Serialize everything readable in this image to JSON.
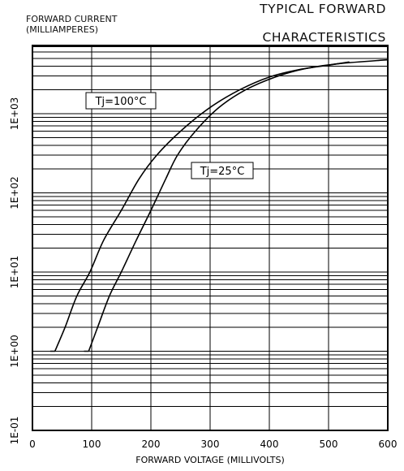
{
  "chart_data": {
    "type": "line",
    "title": "TYPICAL FORWARD CHARACTERISTICS",
    "title_lines": [
      "TYPICAL FORWARD",
      "CHARACTERISTICS"
    ],
    "ylabel_lines": [
      "FORWARD CURRENT",
      "(MILLIAMPERES)"
    ],
    "xlabel": "FORWARD  VOLTAGE (MILLIVOLTS)",
    "xlim": [
      0,
      600
    ],
    "ylim": [
      0.1,
      5000
    ],
    "yscale": "log",
    "grid": true,
    "x_ticks": [
      0,
      100,
      200,
      300,
      400,
      500,
      600
    ],
    "x_tick_labels": [
      "0",
      "100",
      "200",
      "300",
      "400",
      "500",
      "600"
    ],
    "y_ticks": [
      0.1,
      1,
      10,
      100,
      1000
    ],
    "y_tick_labels": [
      "1E-01",
      "1E+00",
      "1E+01",
      "1E+02",
      "1E+03"
    ],
    "series": [
      {
        "name": "Tj=100°C",
        "points": [
          [
            38,
            1
          ],
          [
            55,
            2
          ],
          [
            75,
            5
          ],
          [
            97,
            10
          ],
          [
            120,
            25
          ],
          [
            150,
            60
          ],
          [
            180,
            150
          ],
          [
            210,
            300
          ],
          [
            250,
            600
          ],
          [
            300,
            1200
          ],
          [
            350,
            2000
          ],
          [
            400,
            2900
          ],
          [
            450,
            3600
          ],
          [
            500,
            4100
          ],
          [
            535,
            4500
          ]
        ]
      },
      {
        "name": "Tj=25°C",
        "points": [
          [
            95,
            1
          ],
          [
            110,
            2
          ],
          [
            130,
            5
          ],
          [
            150,
            10
          ],
          [
            175,
            25
          ],
          [
            200,
            60
          ],
          [
            225,
            150
          ],
          [
            245,
            300
          ],
          [
            275,
            600
          ],
          [
            315,
            1200
          ],
          [
            360,
            2000
          ],
          [
            410,
            2900
          ],
          [
            460,
            3700
          ],
          [
            520,
            4300
          ],
          [
            600,
            4800
          ]
        ]
      }
    ],
    "annotations": [
      {
        "text": "Tj=100°C",
        "series": 0
      },
      {
        "text": "Tj=25°C",
        "series": 1
      }
    ]
  }
}
